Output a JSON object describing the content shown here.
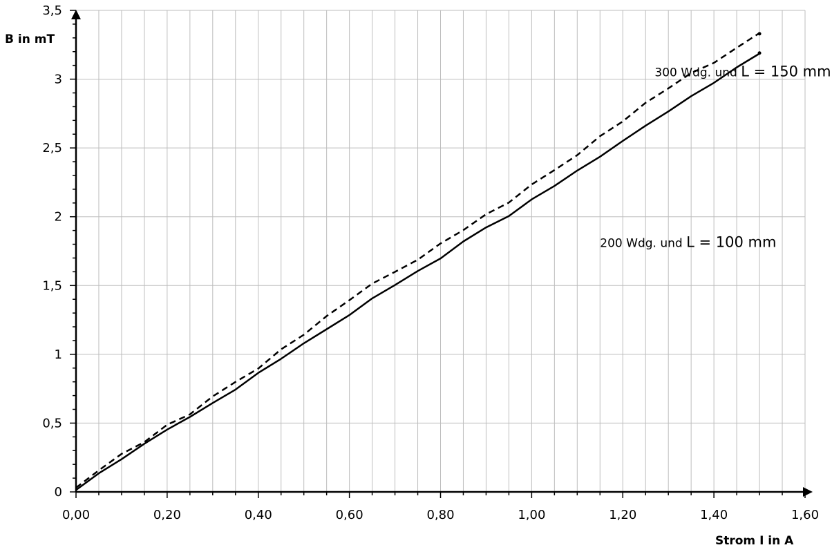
{
  "chart_data": {
    "type": "line",
    "xlabel": "Strom I in A",
    "ylabel": "B in mT",
    "xlim": [
      0,
      1.6
    ],
    "ylim": [
      0,
      3.5
    ],
    "x_ticks": [
      "0,00",
      "0,20",
      "0,40",
      "0,60",
      "0,80",
      "1,00",
      "1,20",
      "1,40",
      "1,60"
    ],
    "y_ticks": [
      "0",
      "0,5",
      "1",
      "1,5",
      "2",
      "2,5",
      "3",
      "3,5"
    ],
    "grid": true,
    "series": [
      {
        "style": "dashed",
        "x": [
          0.0,
          0.05,
          0.1,
          0.15,
          0.2,
          0.25,
          0.3,
          0.35,
          0.4,
          0.45,
          0.5,
          0.55,
          0.6,
          0.65,
          0.7,
          0.75,
          0.8,
          0.85,
          0.9,
          0.95,
          1.0,
          1.05,
          1.1,
          1.15,
          1.2,
          1.25,
          1.3,
          1.35,
          1.4,
          1.45,
          1.5
        ],
        "y": [
          0.03,
          0.16,
          0.27,
          0.37,
          0.48,
          0.57,
          0.69,
          0.8,
          0.9,
          1.03,
          1.15,
          1.27,
          1.4,
          1.51,
          1.6,
          1.69,
          1.8,
          1.91,
          2.01,
          2.11,
          2.23,
          2.34,
          2.45,
          2.58,
          2.7,
          2.82,
          2.94,
          3.04,
          3.12,
          3.23,
          3.33
        ]
      },
      {
        "style": "solid",
        "x": [
          0.0,
          0.05,
          0.1,
          0.15,
          0.2,
          0.25,
          0.3,
          0.35,
          0.4,
          0.45,
          0.5,
          0.55,
          0.6,
          0.65,
          0.7,
          0.75,
          0.8,
          0.85,
          0.9,
          0.95,
          1.0,
          1.05,
          1.1,
          1.15,
          1.2,
          1.25,
          1.3,
          1.35,
          1.4,
          1.45,
          1.5
        ],
        "y": [
          0.02,
          0.13,
          0.24,
          0.35,
          0.45,
          0.55,
          0.64,
          0.75,
          0.86,
          0.97,
          1.08,
          1.18,
          1.29,
          1.4,
          1.51,
          1.6,
          1.7,
          1.82,
          1.92,
          2.01,
          2.12,
          2.23,
          2.33,
          2.44,
          2.55,
          2.66,
          2.77,
          2.87,
          2.98,
          3.08,
          3.19
        ]
      }
    ],
    "annotations": [
      {
        "prefix": "300 Wdg. und ",
        "suffix": "L = 150 mm",
        "x": 1.27,
        "y": 3.02
      },
      {
        "prefix": "200 Wdg. und ",
        "suffix": "L = 100 mm",
        "x": 1.15,
        "y": 1.78
      }
    ]
  }
}
